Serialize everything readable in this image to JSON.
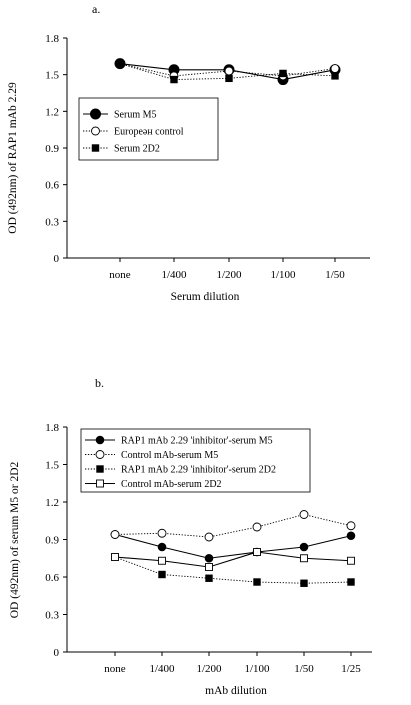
{
  "chart_data": [
    {
      "type": "line",
      "panel_label": "a.",
      "title": "",
      "xlabel": "Serum dilution",
      "ylabel": "OD (492nm) of RAP1 mAb 2.29",
      "categories": [
        "none",
        "1/400",
        "1/200",
        "1/100",
        "1/50"
      ],
      "ylim": [
        0,
        1.8
      ],
      "yticks": [
        "0",
        "0.3",
        "0.6",
        "0.9",
        "1.2",
        "1.5",
        "1.8"
      ],
      "grid": false,
      "legend_position": "upper-left",
      "series": [
        {
          "name": "Serum M5",
          "marker": "filled-circle-large",
          "line": "solid",
          "values": [
            1.59,
            1.54,
            1.54,
            1.46,
            1.54
          ]
        },
        {
          "name": "Europeән control",
          "marker": "open-circle",
          "line": "dotted",
          "values": [
            1.59,
            1.49,
            1.53,
            1.49,
            1.55
          ]
        },
        {
          "name": "Serum 2D2",
          "marker": "filled-square",
          "line": "dotted",
          "values": [
            1.59,
            1.46,
            1.47,
            1.51,
            1.49
          ]
        }
      ]
    },
    {
      "type": "line",
      "panel_label": "b.",
      "title": "",
      "xlabel": "mAb dilution",
      "ylabel": "OD (492nm) of serum M5 or 2D2",
      "categories": [
        "none",
        "1/400",
        "1/200",
        "1/100",
        "1/50",
        "1/25"
      ],
      "ylim": [
        0,
        1.8
      ],
      "yticks": [
        "0",
        "0.3",
        "0.6",
        "0.9",
        "1.2",
        "1.5",
        "1.8"
      ],
      "grid": false,
      "legend_position": "top-left",
      "series": [
        {
          "name": "RAP1 mAb 2.29 'inhibitor'-serum M5",
          "marker": "filled-circle",
          "line": "solid",
          "values": [
            0.94,
            0.84,
            0.75,
            0.8,
            0.84,
            0.93
          ]
        },
        {
          "name": "Control mAb-serum M5",
          "marker": "open-circle",
          "line": "dotted",
          "values": [
            0.94,
            0.95,
            0.92,
            1.0,
            1.1,
            1.01
          ]
        },
        {
          "name": "RAP1 mAb 2.29 'inhibitor'-serum 2D2",
          "marker": "filled-square",
          "line": "dotted",
          "values": [
            0.76,
            0.62,
            0.59,
            0.56,
            0.55,
            0.56
          ]
        },
        {
          "name": "Control mAb-serum 2D2",
          "marker": "open-square",
          "line": "solid",
          "values": [
            0.76,
            0.73,
            0.68,
            0.8,
            0.75,
            0.73
          ]
        }
      ]
    }
  ]
}
